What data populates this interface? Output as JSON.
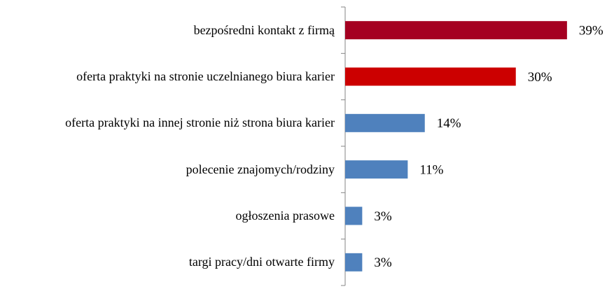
{
  "chart_data": {
    "type": "bar",
    "orientation": "horizontal",
    "categories": [
      "bezpośredni kontakt z firmą",
      "oferta praktyki na stronie uczelnianego biura karier",
      "oferta praktyki na innej stronie niż strona biura karier",
      "polecenie znajomych/rodziny",
      "ogłoszenia  prasowe",
      "targi pracy/dni otwarte firmy"
    ],
    "values": [
      39,
      30,
      14,
      11,
      3,
      3
    ],
    "value_labels": [
      "39%",
      "30%",
      "14%",
      "11%",
      "3%",
      "3%"
    ],
    "colors": [
      "#a50021",
      "#cc0000",
      "#4f81bd",
      "#4f81bd",
      "#4f81bd",
      "#4f81bd"
    ],
    "xlim": [
      0,
      40
    ]
  }
}
